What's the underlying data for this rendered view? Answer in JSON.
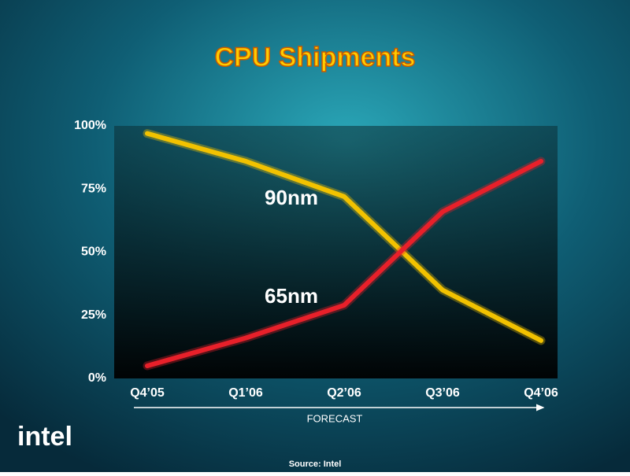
{
  "chart_data": {
    "type": "line",
    "title": "CPU Shipments",
    "categories": [
      "Q4’05",
      "Q1’06",
      "Q2’06",
      "Q3’06",
      "Q4’06"
    ],
    "series": [
      {
        "name": "90nm",
        "color": "#f2c200",
        "values": [
          97,
          86,
          72,
          35,
          15
        ]
      },
      {
        "name": "65nm",
        "color": "#e8202a",
        "values": [
          5,
          16,
          29,
          66,
          86
        ]
      }
    ],
    "ylim": [
      0,
      100
    ],
    "yticks": [
      {
        "value": 0,
        "label": "0%"
      },
      {
        "value": 25,
        "label": "25%"
      },
      {
        "value": 50,
        "label": "50%"
      },
      {
        "value": 75,
        "label": "75%"
      },
      {
        "value": 100,
        "label": "100%"
      }
    ],
    "annotation": "FORECAST",
    "source": "Source: Intel",
    "logo": "intel"
  }
}
